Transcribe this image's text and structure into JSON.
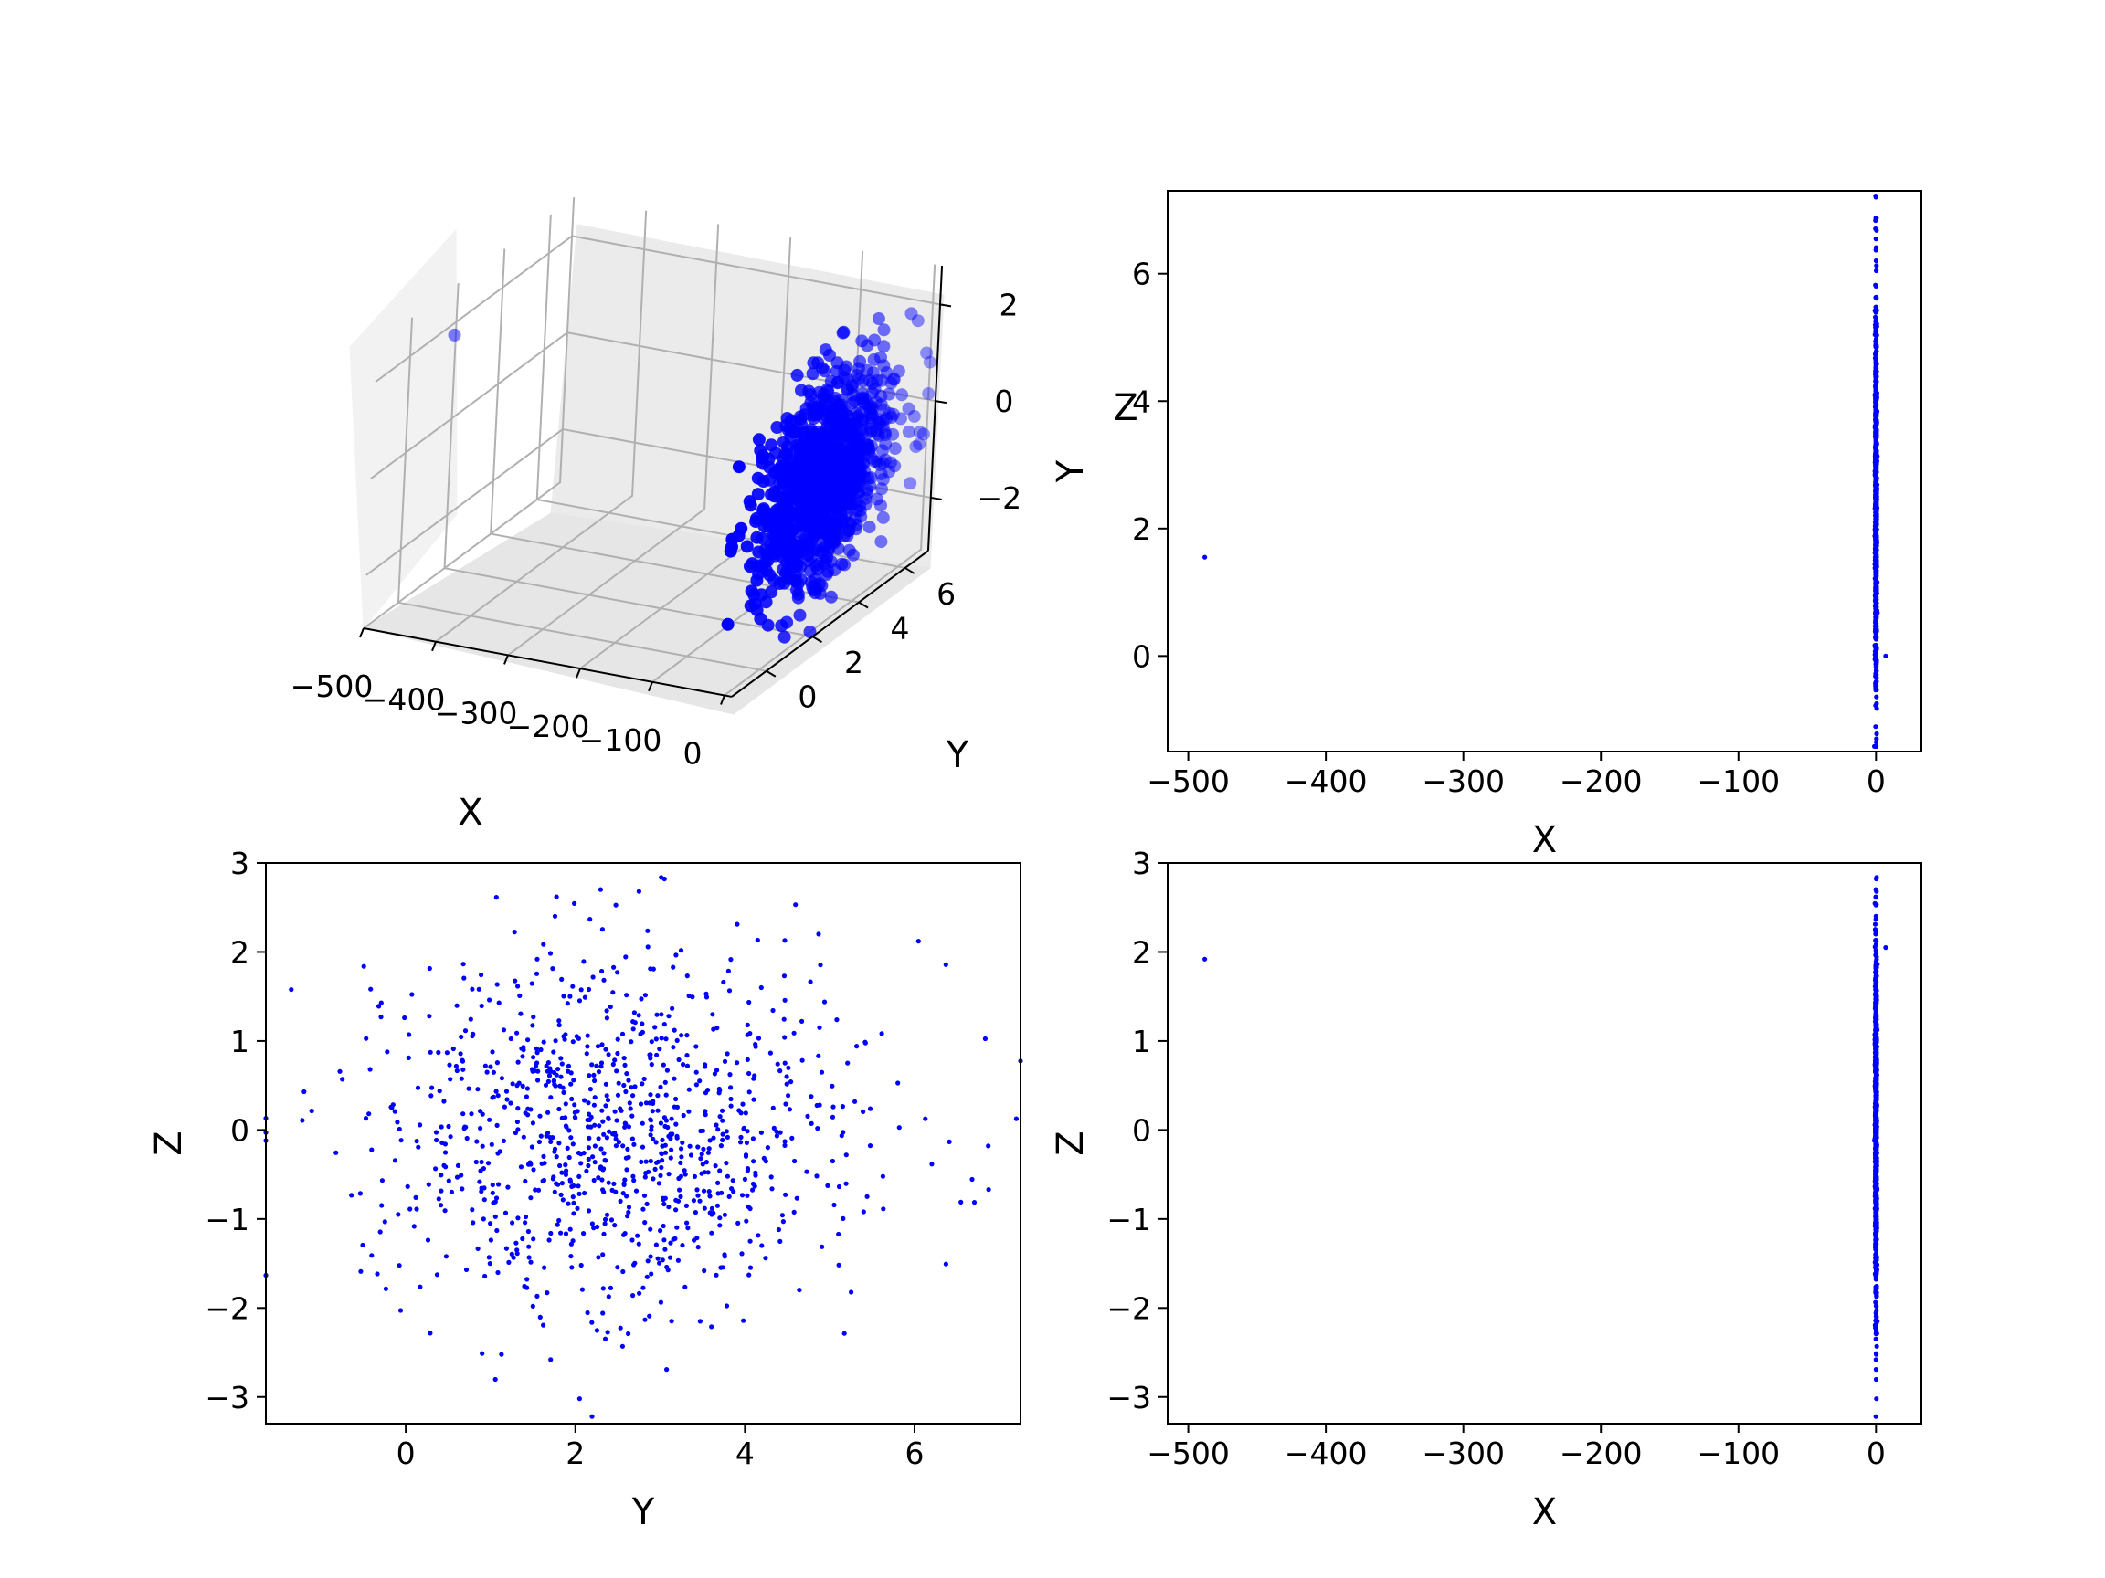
{
  "figure": {
    "background": "#ffffff",
    "point_color": "#0000ff",
    "pane_color": "#f2f2f2",
    "grid_color": "#b0b0b0"
  },
  "chart_data": [
    {
      "type": "scatter",
      "panel": "3d",
      "xlabel": "X",
      "ylabel": "Y",
      "zlabel": "Z",
      "xlim": [
        -500,
        10
      ],
      "ylim": [
        -1.5,
        7
      ],
      "zlim": [
        -3.1,
        2.8
      ],
      "xticks": [
        "−500",
        "−400",
        "−300",
        "−200",
        "−100",
        "0"
      ],
      "yticks": [
        "0",
        "2",
        "4",
        "6"
      ],
      "zticks": [
        "−2",
        "0",
        "2"
      ],
      "grid": true,
      "series": [
        {
          "color": "#0000ff",
          "distribution": {
            "n": 1000,
            "x_mean": 0,
            "x_sd": 0.3,
            "y_mean": 2.5,
            "y_sd": 1.5,
            "z_mean": 0,
            "z_sd": 1
          },
          "outliers": [
            {
              "x": -488,
              "y": 1.55,
              "z": 1.92
            }
          ]
        }
      ]
    },
    {
      "type": "scatter",
      "panel": "top-right",
      "xlabel": "X",
      "ylabel": "Y",
      "xlim": [
        -515,
        33
      ],
      "ylim": [
        -1.5,
        7.3
      ],
      "xticks": [
        -500,
        -400,
        -300,
        -200,
        -100,
        0
      ],
      "xtick_labels": [
        "−500",
        "−400",
        "−300",
        "−200",
        "−100",
        "0"
      ],
      "yticks": [
        0,
        2,
        4,
        6
      ],
      "ytick_labels": [
        "0",
        "2",
        "4",
        "6"
      ],
      "grid": false,
      "series": [
        {
          "color": "#0000ff",
          "distribution": {
            "n": 1000,
            "x_mean": 0,
            "x_sd": 0.3,
            "y_mean": 2.5,
            "y_sd": 1.5
          },
          "outliers": [
            {
              "x": -488,
              "y": 1.55
            },
            {
              "x": 0.3,
              "y": 6.87
            },
            {
              "x": 0.3,
              "y": -1.3
            },
            {
              "x": 7,
              "y": 0.0
            }
          ]
        }
      ]
    },
    {
      "type": "scatter",
      "panel": "bottom-left",
      "xlabel": "Y",
      "ylabel": "Z",
      "xlim": [
        -1.65,
        7.25
      ],
      "ylim": [
        -3.3,
        3.0
      ],
      "xticks": [
        0,
        2,
        4,
        6
      ],
      "xtick_labels": [
        "0",
        "2",
        "4",
        "6"
      ],
      "yticks": [
        -3,
        -2,
        -1,
        0,
        1,
        2,
        3
      ],
      "ytick_labels": [
        "−3",
        "−2",
        "−1",
        "0",
        "1",
        "2",
        "3"
      ],
      "grid": false,
      "series": [
        {
          "color": "#0000ff",
          "distribution": {
            "n": 1000,
            "y_mean": 2.5,
            "y_sd": 1.5,
            "z_mean": 0,
            "z_sd": 1
          },
          "outliers": [
            {
              "x": -1.2,
              "y": 0.43
            },
            {
              "x": 6.87,
              "y": -0.18
            },
            {
              "x": 1.55,
              "y": 1.92
            },
            {
              "x": 2.75,
              "y": 2.68
            },
            {
              "x": 2.05,
              "y": -3.02
            }
          ]
        }
      ]
    },
    {
      "type": "scatter",
      "panel": "bottom-right",
      "xlabel": "X",
      "ylabel": "Z",
      "xlim": [
        -515,
        33
      ],
      "ylim": [
        -3.3,
        3.0
      ],
      "xticks": [
        -500,
        -400,
        -300,
        -200,
        -100,
        0
      ],
      "xtick_labels": [
        "−500",
        "−400",
        "−300",
        "−200",
        "−100",
        "0"
      ],
      "yticks": [
        -3,
        -2,
        -1,
        0,
        1,
        2,
        3
      ],
      "ytick_labels": [
        "−3",
        "−2",
        "−1",
        "0",
        "1",
        "2",
        "3"
      ],
      "grid": false,
      "series": [
        {
          "color": "#0000ff",
          "distribution": {
            "n": 1000,
            "x_mean": 0,
            "x_sd": 0.3,
            "z_mean": 0,
            "z_sd": 1
          },
          "outliers": [
            {
              "x": -488,
              "y": 1.92
            },
            {
              "x": 7,
              "y": 2.05
            },
            {
              "x": 0.3,
              "y": 2.68
            },
            {
              "x": 0.3,
              "y": -3.02
            }
          ]
        }
      ]
    }
  ]
}
